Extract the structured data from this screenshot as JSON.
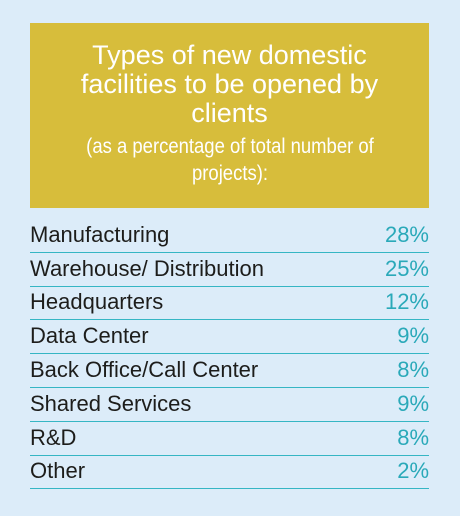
{
  "chart_data": {
    "type": "table",
    "title": "Types of new domestic facilities to be opened by clients",
    "subtitle": "(as a percentage of total number of projects):",
    "categories": [
      "Manufacturing",
      "Warehouse/ Distribution",
      "Headquarters",
      "Data Center",
      "Back Office/Call Center",
      "Shared Services",
      "R&D",
      "Other"
    ],
    "values": [
      28,
      25,
      12,
      9,
      8,
      9,
      8,
      2
    ],
    "value_labels": [
      "28%",
      "25%",
      "12%",
      "9%",
      "8%",
      "9%",
      "8%",
      "2%"
    ],
    "unit": "%"
  },
  "colors": {
    "background": "#dcecf9",
    "title_box": "#d7bd3b",
    "title_text": "#ffffff",
    "label_text": "#1d1d1b",
    "value_text": "#2aa9b9",
    "row_divider": "#36b6c4"
  }
}
